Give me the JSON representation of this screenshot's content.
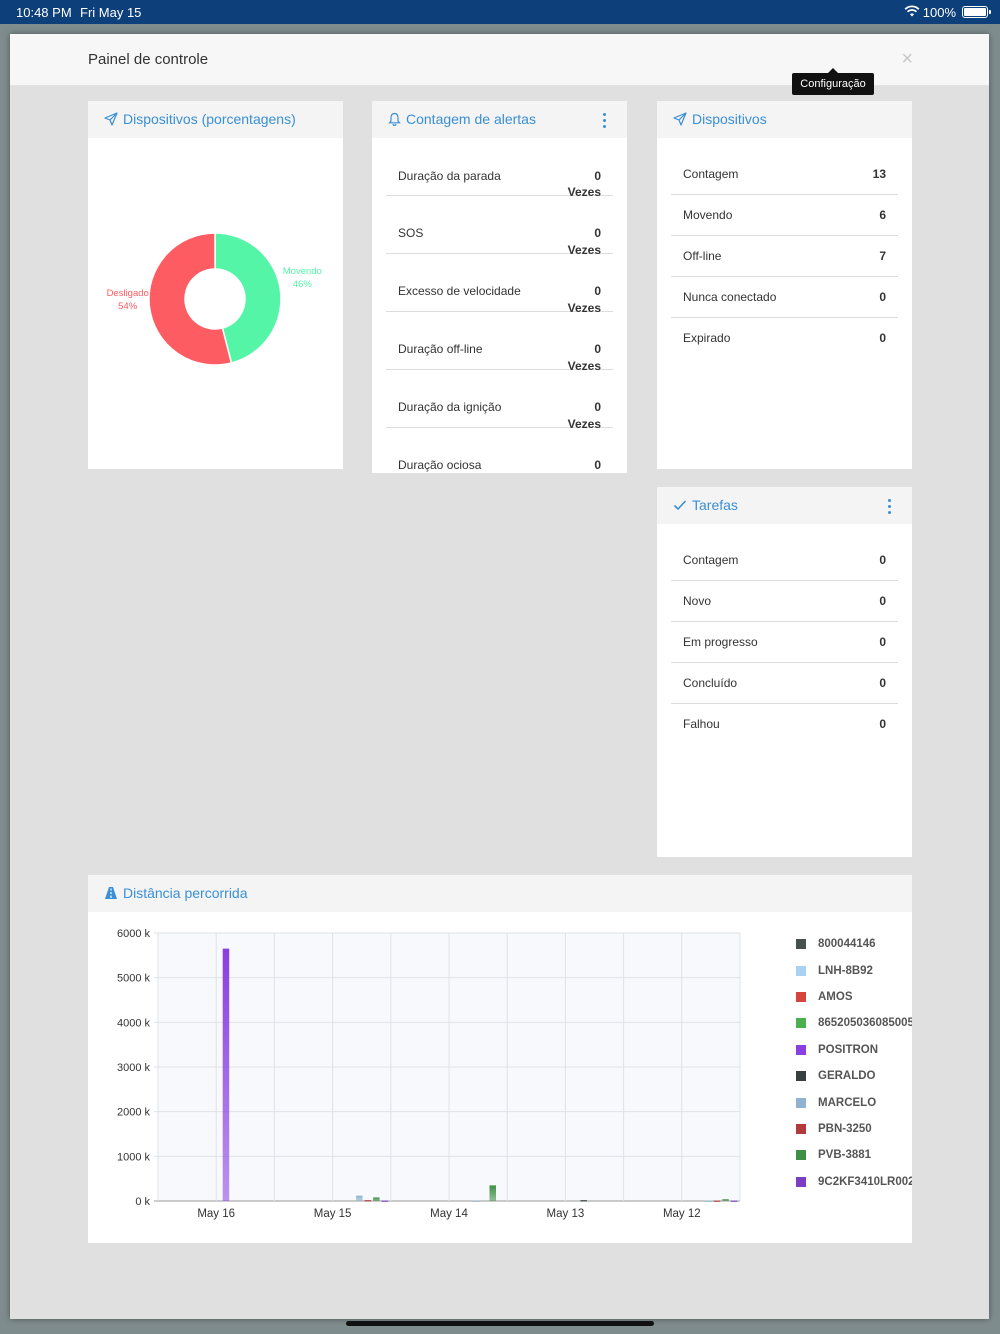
{
  "status": {
    "time": "10:48 PM",
    "date": "Fri May 15",
    "battery": "100%"
  },
  "modal": {
    "title": "Painel de controle",
    "close": "×",
    "tooltip": "Configuração"
  },
  "devices_pct": {
    "title": "Dispositivos (porcentagens)",
    "slices": [
      {
        "label": "Movendo",
        "pct_label": "46%",
        "value": 46,
        "color": "#55f5a8"
      },
      {
        "label": "Desligado",
        "pct_label": "54%",
        "value": 54,
        "color": "#fd5c63"
      }
    ]
  },
  "alerts": {
    "title": "Contagem de alertas",
    "unit": "Vezes",
    "items": [
      {
        "name": "Duração da parada",
        "value": "0"
      },
      {
        "name": "SOS",
        "value": "0"
      },
      {
        "name": "Excesso de velocidade",
        "value": "0"
      },
      {
        "name": "Duração off-line",
        "value": "0"
      },
      {
        "name": "Duração da ignição",
        "value": "0"
      },
      {
        "name": "Duração ociosa",
        "value": "0"
      }
    ]
  },
  "devices": {
    "title": "Dispositivos",
    "items": [
      {
        "name": "Contagem",
        "value": "13"
      },
      {
        "name": "Movendo",
        "value": "6"
      },
      {
        "name": "Off-line",
        "value": "7"
      },
      {
        "name": "Nunca conectado",
        "value": "0"
      },
      {
        "name": "Expirado",
        "value": "0"
      }
    ]
  },
  "tasks": {
    "title": "Tarefas",
    "items": [
      {
        "name": "Contagem",
        "value": "0"
      },
      {
        "name": "Novo",
        "value": "0"
      },
      {
        "name": "Em progresso",
        "value": "0"
      },
      {
        "name": "Concluído",
        "value": "0"
      },
      {
        "name": "Falhou",
        "value": "0"
      }
    ]
  },
  "distance": {
    "title": "Distância percorrida",
    "legend": [
      {
        "name": "800044146",
        "color": "#474f4f"
      },
      {
        "name": "LNH-8B92",
        "color": "#a8d1f2"
      },
      {
        "name": "AMOS",
        "color": "#d6453d"
      },
      {
        "name": "865205036085005",
        "color": "#4caf50"
      },
      {
        "name": "POSITRON",
        "color": "#8a3fe0"
      },
      {
        "name": "GERALDO",
        "color": "#37403f"
      },
      {
        "name": "MARCELO",
        "color": "#8fb3d1"
      },
      {
        "name": "PBN-3250",
        "color": "#b33a3a"
      },
      {
        "name": "PVB-3881",
        "color": "#3f8f46"
      },
      {
        "name": "9C2KF3410LR002",
        "color": "#7a3ec4"
      }
    ]
  },
  "chart_data": {
    "type": "bar",
    "categories": [
      "May 16",
      "May 15",
      "May 14",
      "May 13",
      "May 12"
    ],
    "ylim": [
      0,
      6000
    ],
    "ytick_labels": [
      "0 k",
      "1000 k",
      "2000 k",
      "3000 k",
      "4000 k",
      "5000 k",
      "6000 k"
    ],
    "yticks": [
      0,
      1000,
      2000,
      3000,
      4000,
      5000,
      6000
    ],
    "series": [
      {
        "name": "800044146",
        "values": [
          0,
          0,
          0,
          0,
          0
        ]
      },
      {
        "name": "LNH-8B92",
        "values": [
          0,
          0,
          0,
          0,
          0
        ]
      },
      {
        "name": "AMOS",
        "values": [
          0,
          0,
          0,
          0,
          0
        ]
      },
      {
        "name": "865205036085005",
        "values": [
          0,
          0,
          0,
          0,
          0
        ]
      },
      {
        "name": "POSITRON",
        "values": [
          5650,
          0,
          0,
          0,
          0
        ]
      },
      {
        "name": "GERALDO",
        "values": [
          0,
          0,
          0,
          20,
          0
        ]
      },
      {
        "name": "MARCELO",
        "values": [
          0,
          120,
          10,
          0,
          10
        ]
      },
      {
        "name": "PBN-3250",
        "values": [
          0,
          20,
          0,
          0,
          10
        ]
      },
      {
        "name": "PVB-3881",
        "values": [
          0,
          80,
          350,
          0,
          40
        ]
      },
      {
        "name": "9C2KF3410LR002",
        "values": [
          0,
          10,
          0,
          0,
          10
        ]
      }
    ]
  }
}
